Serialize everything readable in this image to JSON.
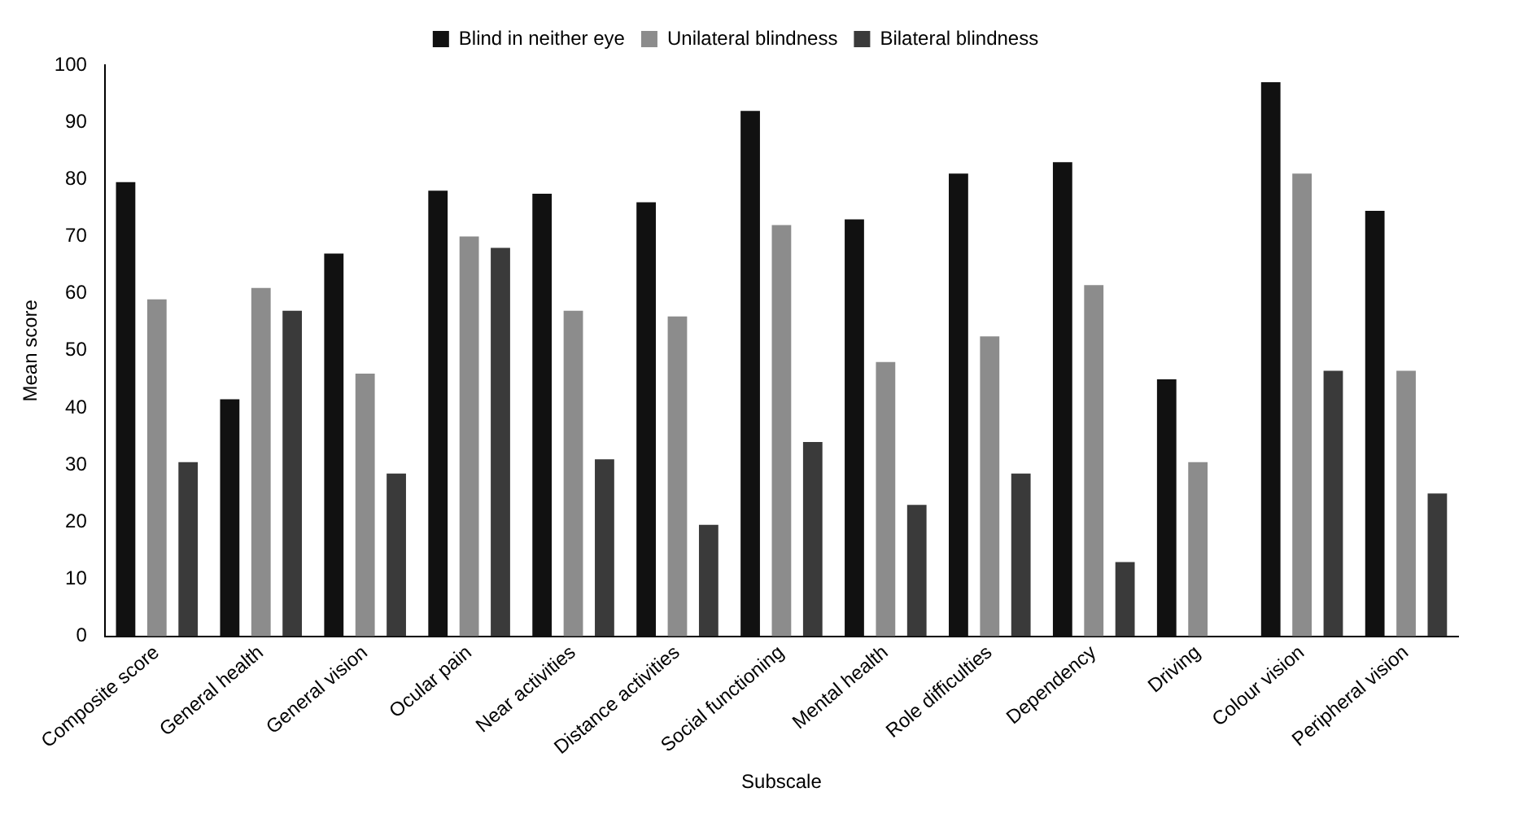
{
  "chart_data": {
    "type": "bar",
    "xlabel": "Subscale",
    "ylabel": "Mean score",
    "categories": [
      "Composite score",
      "General health",
      "General vision",
      "Ocular pain",
      "Near activities",
      "Distance activities",
      "Social functioning",
      "Mental health",
      "Role difficulties",
      "Dependency",
      "Driving",
      "Colour vision",
      "Peripheral vision"
    ],
    "series": [
      {
        "name": "Blind in neither eye",
        "color": "#111111",
        "values": [
          79.5,
          41.5,
          67,
          78,
          77.5,
          76,
          92,
          73,
          81,
          83,
          45,
          97,
          74.5
        ]
      },
      {
        "name": "Unilateral blindness",
        "color": "#8c8c8c",
        "values": [
          59,
          61,
          46,
          70,
          57,
          56,
          72,
          48,
          52.5,
          61.5,
          30.5,
          81,
          46.5
        ]
      },
      {
        "name": "Bilateral blindness",
        "color": "#3a3a3a",
        "values": [
          30.5,
          57,
          28.5,
          68,
          31,
          19.5,
          34,
          23,
          28.5,
          13,
          null,
          46.5,
          25
        ]
      }
    ],
    "ylim": [
      0,
      100
    ],
    "yticks": [
      0,
      10,
      20,
      30,
      40,
      50,
      60,
      70,
      80,
      90,
      100
    ],
    "grid": false,
    "legend": "top"
  }
}
